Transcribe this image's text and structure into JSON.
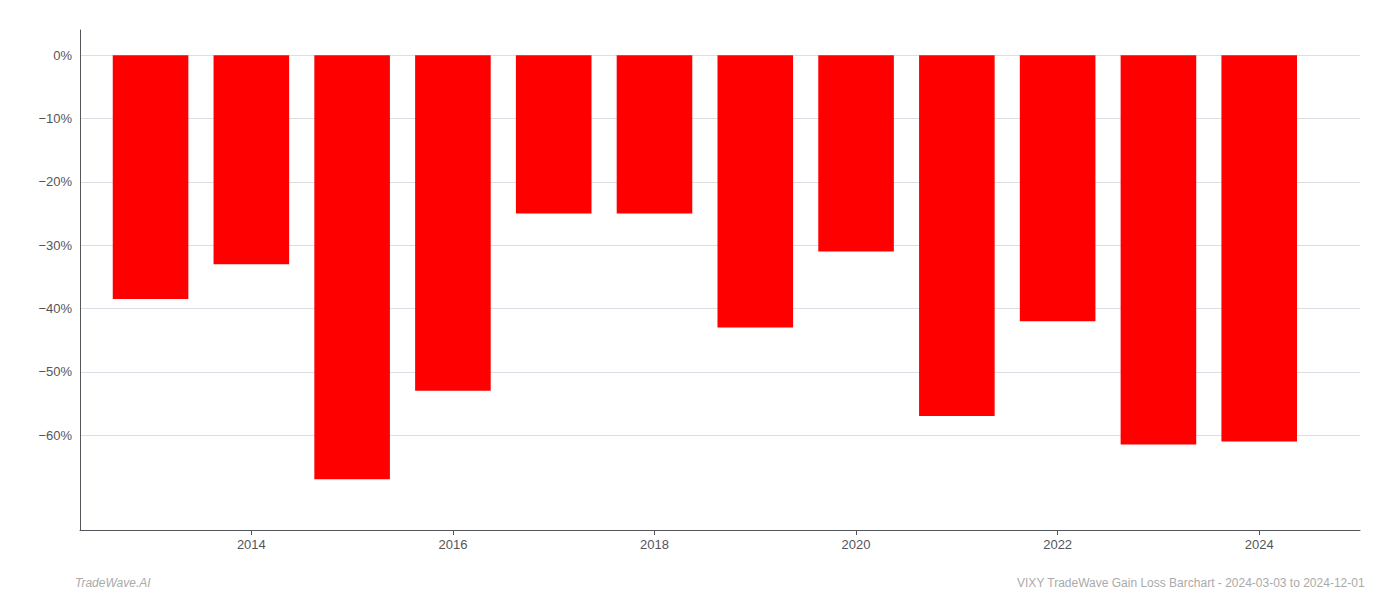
{
  "chart_data": {
    "type": "bar",
    "x": [
      2013,
      2014,
      2015,
      2016,
      2017,
      2018,
      2019,
      2020,
      2021,
      2022,
      2023,
      2024
    ],
    "values": [
      -38.5,
      -33.0,
      -67.0,
      -53.0,
      -25.0,
      -25.0,
      -43.0,
      -31.0,
      -57.0,
      -42.0,
      -61.5,
      -61.0
    ],
    "color": "#ff0000",
    "xlim": [
      2012.3,
      2025.0
    ],
    "xticks": [
      2014,
      2016,
      2018,
      2020,
      2022,
      2024
    ],
    "ylim": [
      -75,
      4
    ],
    "yticks": [
      {
        "value": 0,
        "label": "0%"
      },
      {
        "value": -10,
        "label": "−10%"
      },
      {
        "value": -20,
        "label": "−20%"
      },
      {
        "value": -30,
        "label": "−30%"
      },
      {
        "value": -40,
        "label": "−40%"
      },
      {
        "value": -50,
        "label": "−50%"
      },
      {
        "value": -60,
        "label": "−60%"
      }
    ],
    "grid": true,
    "annotations": [
      "TradeWave.AI",
      "VIXY TradeWave Gain Loss Barchart - 2024-03-03 to 2024-12-01"
    ]
  }
}
